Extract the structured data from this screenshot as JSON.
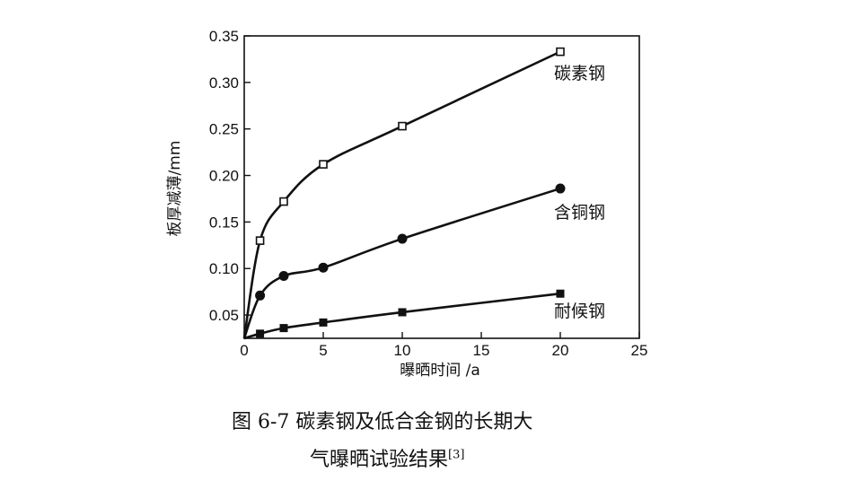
{
  "chart_data": {
    "type": "line",
    "xlabel": "曝晒时间 /a",
    "ylabel": "板厚减薄/mm",
    "xlim": [
      0,
      25
    ],
    "ylim": [
      0.025,
      0.35
    ],
    "xticks": [
      "0",
      "5",
      "10",
      "15",
      "20",
      "25"
    ],
    "yticks": [
      "0.05",
      "0.10",
      "0.15",
      "0.20",
      "0.25",
      "0.30",
      "0.35"
    ],
    "grid": false,
    "series": [
      {
        "name": "碳素钢",
        "marker": "open-square",
        "x": [
          1,
          2.5,
          5,
          10,
          20
        ],
        "y": [
          0.13,
          0.172,
          0.212,
          0.253,
          0.333
        ]
      },
      {
        "name": "含铜钢",
        "marker": "filled-circle",
        "x": [
          1,
          2.5,
          5,
          10,
          20
        ],
        "y": [
          0.071,
          0.092,
          0.101,
          0.132,
          0.186
        ]
      },
      {
        "name": "耐候钢",
        "marker": "filled-square",
        "x": [
          1,
          2.5,
          5,
          10,
          20
        ],
        "y": [
          0.03,
          0.036,
          0.042,
          0.053,
          0.073
        ]
      }
    ]
  },
  "caption": {
    "line1": "图 6-7   碳素钢及低合金钢的长期大",
    "line2": "气曝晒试验结果",
    "ref": "[3]"
  }
}
